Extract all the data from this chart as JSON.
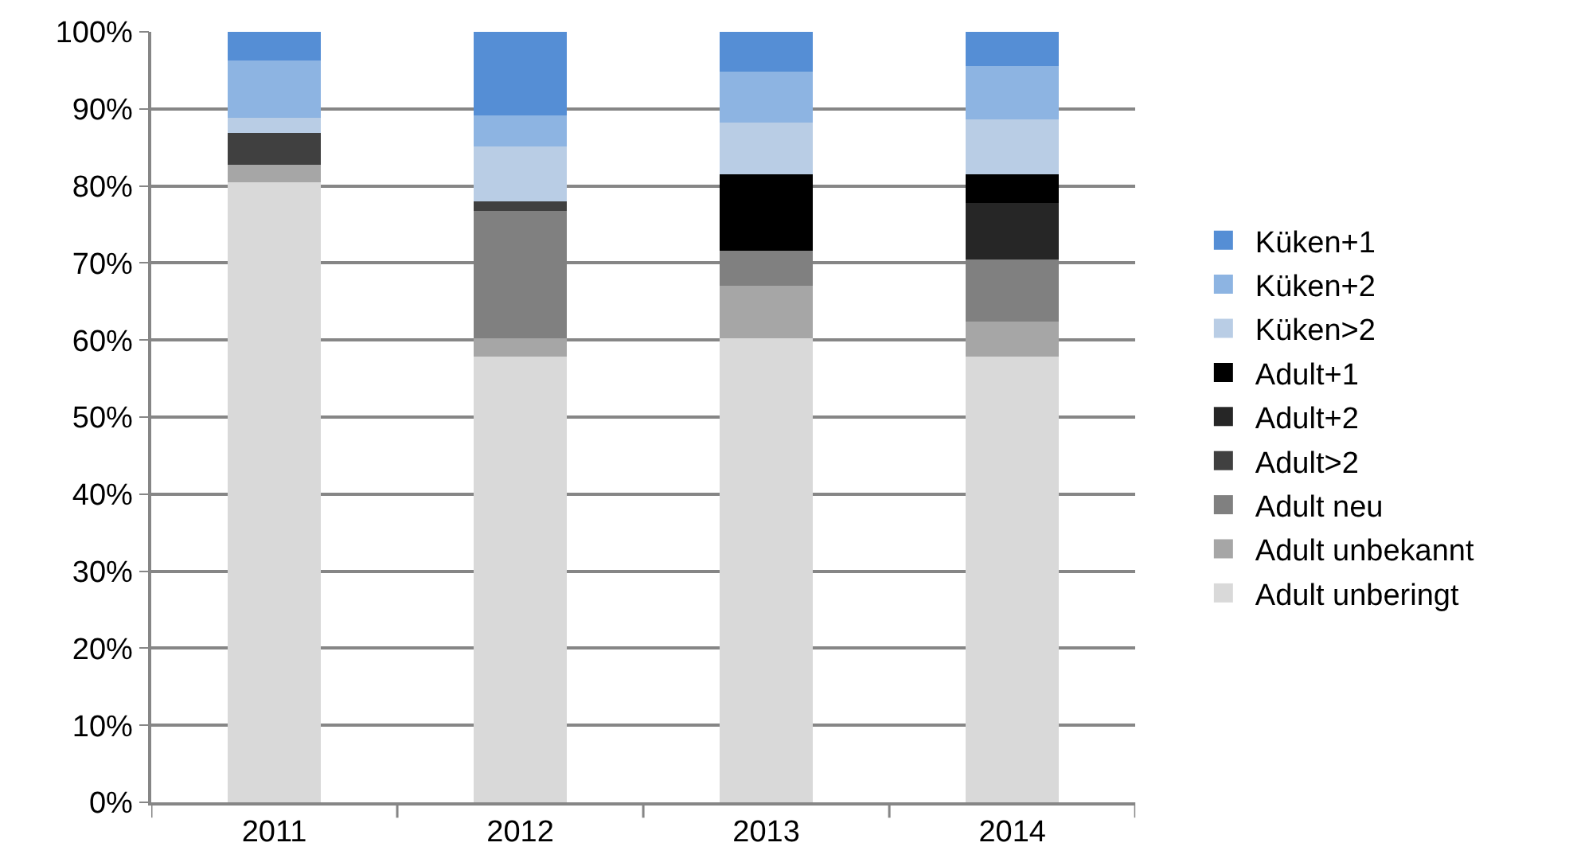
{
  "chart_data": {
    "type": "bar",
    "stacked": true,
    "categories": [
      "2011",
      "2012",
      "2013",
      "2014"
    ],
    "series": [
      {
        "name": "Adult unberingt",
        "color": "#d9d9d9",
        "values": [
          80.5,
          57.9,
          60.2,
          57.9
        ]
      },
      {
        "name": "Adult unbekannt",
        "color": "#a6a6a6",
        "values": [
          2.3,
          2.3,
          6.8,
          4.5
        ]
      },
      {
        "name": "Adult neu",
        "color": "#808080",
        "values": [
          0,
          16.6,
          4.6,
          8.1
        ]
      },
      {
        "name": "Adult>2",
        "color": "#404040",
        "values": [
          4.1,
          1.2,
          0,
          0
        ]
      },
      {
        "name": "Adult+2",
        "color": "#262626",
        "values": [
          0,
          0,
          0,
          7.3
        ]
      },
      {
        "name": "Adult+1",
        "color": "#000000",
        "values": [
          0,
          0,
          9.9,
          3.7
        ]
      },
      {
        "name": "Küken>2",
        "color": "#b9cde5",
        "values": [
          1.9,
          7.1,
          6.7,
          7.1
        ]
      },
      {
        "name": "Küken+2",
        "color": "#8db4e2",
        "values": [
          7.5,
          4.1,
          6.6,
          7.0
        ]
      },
      {
        "name": "Küken+1",
        "color": "#558ed5",
        "values": [
          3.7,
          10.8,
          5.2,
          4.4
        ]
      }
    ],
    "ylim": [
      0,
      100
    ],
    "yticks": [
      {
        "value": 0,
        "label": "0%"
      },
      {
        "value": 10,
        "label": "10%"
      },
      {
        "value": 20,
        "label": "20%"
      },
      {
        "value": 30,
        "label": "30%"
      },
      {
        "value": 40,
        "label": "40%"
      },
      {
        "value": 50,
        "label": "50%"
      },
      {
        "value": 60,
        "label": "60%"
      },
      {
        "value": 70,
        "label": "70%"
      },
      {
        "value": 80,
        "label": "80%"
      },
      {
        "value": 90,
        "label": "90%"
      },
      {
        "value": 100,
        "label": "100%"
      }
    ],
    "grid": "y",
    "legend": "right"
  }
}
